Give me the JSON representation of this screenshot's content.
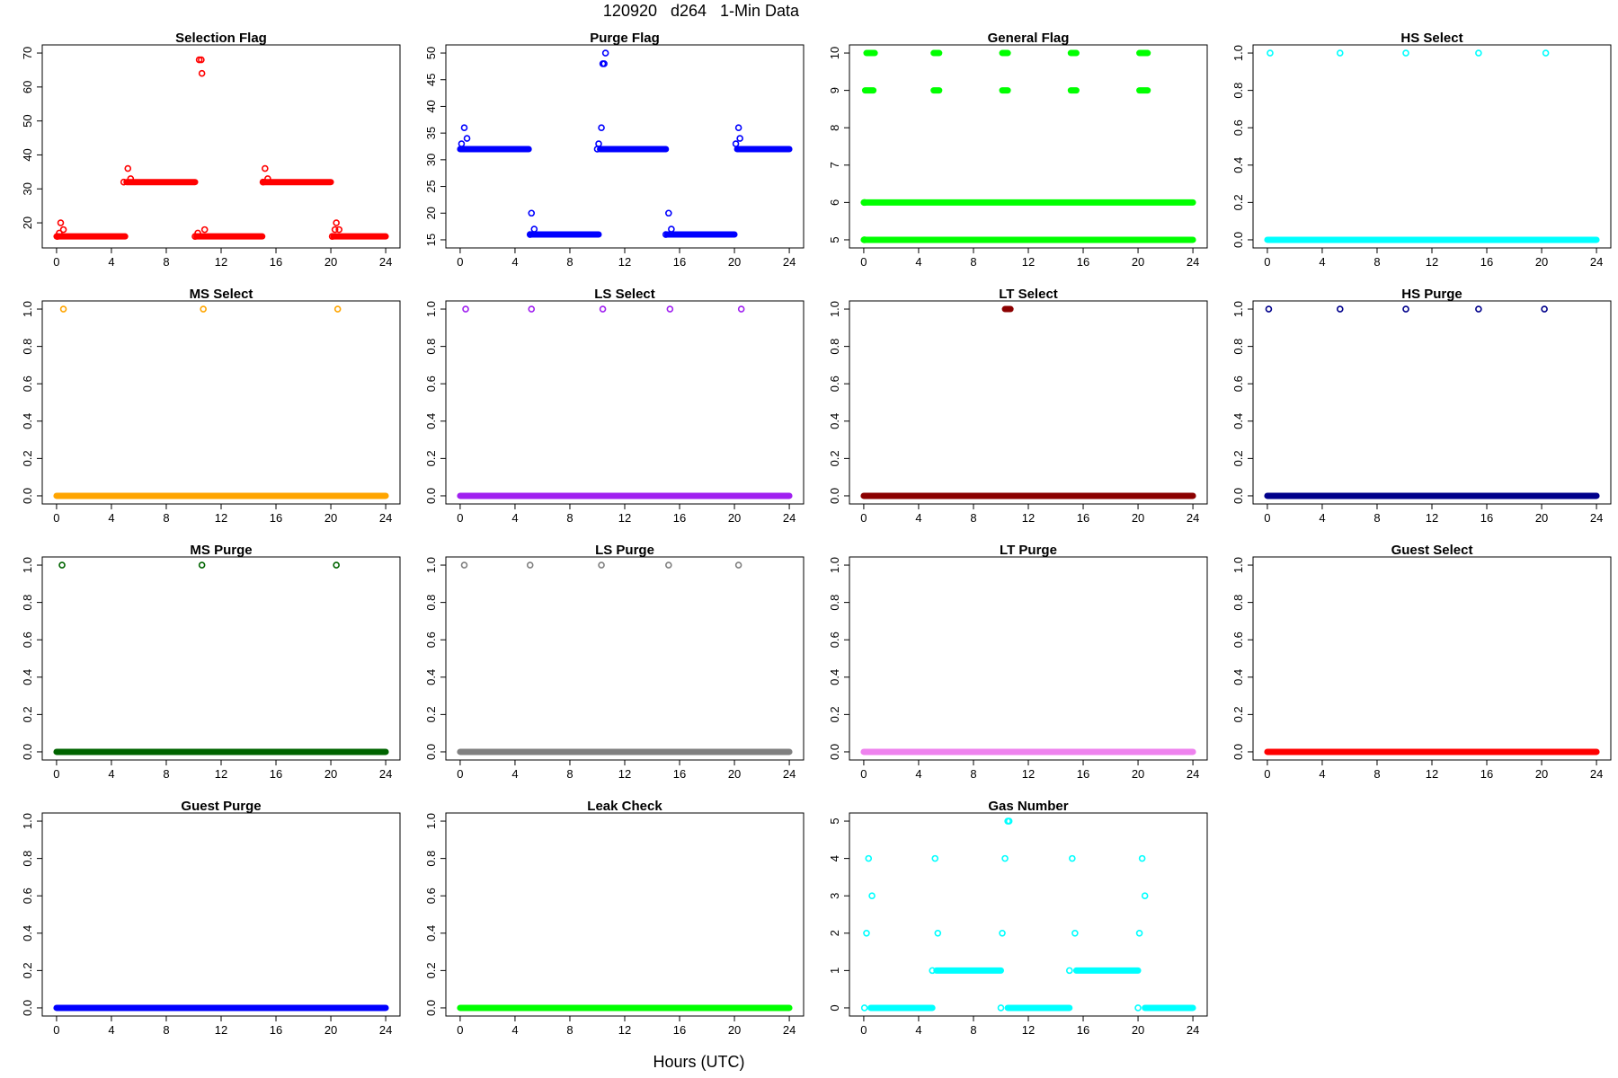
{
  "title": "120920   d264   1-Min Data",
  "xlabel": "Hours (UTC)",
  "chart_data": [
    {
      "type": "scatter",
      "title": "Selection Flag",
      "color": "#ff0000",
      "xlim": [
        0,
        24
      ],
      "ylim": [
        15,
        70
      ],
      "yticks": [
        20,
        30,
        40,
        50,
        60,
        70
      ],
      "xticks": [
        0,
        4,
        8,
        12,
        16,
        20,
        24
      ],
      "runs": [
        [
          0,
          5,
          16
        ],
        [
          5.1,
          10.1,
          32
        ],
        [
          10.2,
          15,
          16
        ],
        [
          15.1,
          20,
          32
        ],
        [
          20.2,
          24,
          16
        ]
      ],
      "points": [
        [
          0.05,
          16
        ],
        [
          0.2,
          17
        ],
        [
          0.3,
          20
        ],
        [
          0.5,
          18
        ],
        [
          4.9,
          32
        ],
        [
          5.2,
          36
        ],
        [
          5.4,
          33
        ],
        [
          10.1,
          16
        ],
        [
          10.3,
          17
        ],
        [
          10.4,
          68
        ],
        [
          10.55,
          68
        ],
        [
          10.6,
          64
        ],
        [
          10.8,
          18
        ],
        [
          15.05,
          32
        ],
        [
          15.2,
          36
        ],
        [
          15.4,
          33
        ],
        [
          20.1,
          16
        ],
        [
          20.3,
          18
        ],
        [
          20.4,
          20
        ],
        [
          20.6,
          18
        ]
      ]
    },
    {
      "type": "scatter",
      "title": "Purge Flag",
      "color": "#0000ff",
      "xlim": [
        0,
        24
      ],
      "ylim": [
        15,
        50
      ],
      "yticks": [
        15,
        20,
        25,
        30,
        35,
        40,
        45,
        50
      ],
      "xticks": [
        0,
        4,
        8,
        12,
        16,
        20,
        24
      ],
      "runs": [
        [
          0,
          5,
          32
        ],
        [
          5.1,
          10.1,
          16
        ],
        [
          10.2,
          15,
          32
        ],
        [
          15.1,
          20,
          16
        ],
        [
          20.2,
          24,
          32
        ]
      ],
      "points": [
        [
          0.1,
          33
        ],
        [
          0.3,
          36
        ],
        [
          0.5,
          34
        ],
        [
          5.1,
          16
        ],
        [
          5.2,
          20
        ],
        [
          5.4,
          17
        ],
        [
          10.0,
          32
        ],
        [
          10.1,
          33
        ],
        [
          10.3,
          36
        ],
        [
          10.4,
          48
        ],
        [
          10.5,
          48
        ],
        [
          10.6,
          50
        ],
        [
          15.0,
          16
        ],
        [
          15.2,
          20
        ],
        [
          15.4,
          17
        ],
        [
          20.1,
          33
        ],
        [
          20.3,
          36
        ],
        [
          20.4,
          34
        ]
      ]
    },
    {
      "type": "scatter",
      "title": "General Flag",
      "color": "#00ff00",
      "xlim": [
        0,
        24
      ],
      "ylim": [
        5,
        10
      ],
      "yticks": [
        5,
        6,
        7,
        8,
        9,
        10
      ],
      "xticks": [
        0,
        4,
        8,
        12,
        16,
        20,
        24
      ],
      "runs": [
        [
          0,
          24,
          5
        ],
        [
          0,
          24,
          6
        ],
        [
          0.1,
          0.7,
          9
        ],
        [
          0.2,
          0.8,
          10
        ],
        [
          5.1,
          5.5,
          9
        ],
        [
          5.1,
          5.5,
          10
        ],
        [
          10.1,
          10.5,
          9
        ],
        [
          10.1,
          10.5,
          10
        ],
        [
          15.1,
          15.5,
          9
        ],
        [
          15.1,
          15.5,
          10
        ],
        [
          20.1,
          20.7,
          9
        ],
        [
          20.1,
          20.7,
          10
        ]
      ],
      "points": [
        [
          0.05,
          5
        ],
        [
          0.05,
          6
        ]
      ]
    },
    {
      "type": "scatter",
      "title": "HS Select",
      "color": "#00ffff",
      "xlim": [
        0,
        24
      ],
      "ylim": [
        0,
        1
      ],
      "yticks": [
        0,
        0.2,
        0.4,
        0.6,
        0.8,
        1
      ],
      "xticks": [
        0,
        4,
        8,
        12,
        16,
        20,
        24
      ],
      "runs": [
        [
          0,
          24,
          0
        ]
      ],
      "points": [
        [
          0.2,
          1
        ],
        [
          5.3,
          1
        ],
        [
          10.1,
          1
        ],
        [
          15.4,
          1
        ],
        [
          20.3,
          1
        ]
      ]
    },
    {
      "type": "scatter",
      "title": "MS Select",
      "color": "#ffa500",
      "xlim": [
        0,
        24
      ],
      "ylim": [
        0,
        1
      ],
      "yticks": [
        0,
        0.2,
        0.4,
        0.6,
        0.8,
        1
      ],
      "xticks": [
        0,
        4,
        8,
        12,
        16,
        20,
        24
      ],
      "runs": [
        [
          0,
          24,
          0
        ]
      ],
      "points": [
        [
          0.5,
          1
        ],
        [
          10.7,
          1
        ],
        [
          20.5,
          1
        ]
      ]
    },
    {
      "type": "scatter",
      "title": "LS Select",
      "color": "#a020f0",
      "xlim": [
        0,
        24
      ],
      "ylim": [
        0,
        1
      ],
      "yticks": [
        0,
        0.2,
        0.4,
        0.6,
        0.8,
        1
      ],
      "xticks": [
        0,
        4,
        8,
        12,
        16,
        20,
        24
      ],
      "runs": [
        [
          0,
          24,
          0
        ]
      ],
      "points": [
        [
          0.4,
          1
        ],
        [
          5.2,
          1
        ],
        [
          10.4,
          1
        ],
        [
          15.3,
          1
        ],
        [
          20.5,
          1
        ]
      ]
    },
    {
      "type": "scatter",
      "title": "LT Select",
      "color": "#8b0000",
      "xlim": [
        0,
        24
      ],
      "ylim": [
        0,
        1
      ],
      "yticks": [
        0,
        0.2,
        0.4,
        0.6,
        0.8,
        1
      ],
      "xticks": [
        0,
        4,
        8,
        12,
        16,
        20,
        24
      ],
      "runs": [
        [
          0,
          24,
          0
        ],
        [
          10.3,
          10.7,
          1
        ]
      ],
      "points": []
    },
    {
      "type": "scatter",
      "title": "HS Purge",
      "color": "#00008b",
      "xlim": [
        0,
        24
      ],
      "ylim": [
        0,
        1
      ],
      "yticks": [
        0,
        0.2,
        0.4,
        0.6,
        0.8,
        1
      ],
      "xticks": [
        0,
        4,
        8,
        12,
        16,
        20,
        24
      ],
      "runs": [
        [
          0,
          24,
          0
        ]
      ],
      "points": [
        [
          0.1,
          1
        ],
        [
          5.3,
          1
        ],
        [
          10.1,
          1
        ],
        [
          15.4,
          1
        ],
        [
          20.2,
          1
        ]
      ]
    },
    {
      "type": "scatter",
      "title": "MS Purge",
      "color": "#006400",
      "xlim": [
        0,
        24
      ],
      "ylim": [
        0,
        1
      ],
      "yticks": [
        0,
        0.2,
        0.4,
        0.6,
        0.8,
        1
      ],
      "xticks": [
        0,
        4,
        8,
        12,
        16,
        20,
        24
      ],
      "runs": [
        [
          0,
          24,
          0
        ]
      ],
      "points": [
        [
          0.4,
          1
        ],
        [
          10.6,
          1
        ],
        [
          20.4,
          1
        ]
      ]
    },
    {
      "type": "scatter",
      "title": "LS Purge",
      "color": "#808080",
      "xlim": [
        0,
        24
      ],
      "ylim": [
        0,
        1
      ],
      "yticks": [
        0,
        0.2,
        0.4,
        0.6,
        0.8,
        1
      ],
      "xticks": [
        0,
        4,
        8,
        12,
        16,
        20,
        24
      ],
      "runs": [
        [
          0,
          24,
          0
        ]
      ],
      "points": [
        [
          0.3,
          1
        ],
        [
          5.1,
          1
        ],
        [
          10.3,
          1
        ],
        [
          15.2,
          1
        ],
        [
          20.3,
          1
        ]
      ]
    },
    {
      "type": "scatter",
      "title": "LT Purge",
      "color": "#ee82ee",
      "xlim": [
        0,
        24
      ],
      "ylim": [
        0,
        1
      ],
      "yticks": [
        0,
        0.2,
        0.4,
        0.6,
        0.8,
        1
      ],
      "xticks": [
        0,
        4,
        8,
        12,
        16,
        20,
        24
      ],
      "runs": [
        [
          0,
          24,
          0
        ]
      ],
      "points": []
    },
    {
      "type": "scatter",
      "title": "Guest Select",
      "color": "#ff0000",
      "xlim": [
        0,
        24
      ],
      "ylim": [
        0,
        1
      ],
      "yticks": [
        0,
        0.2,
        0.4,
        0.6,
        0.8,
        1
      ],
      "xticks": [
        0,
        4,
        8,
        12,
        16,
        20,
        24
      ],
      "runs": [
        [
          0,
          24,
          0
        ]
      ],
      "points": []
    },
    {
      "type": "scatter",
      "title": "Guest Purge",
      "color": "#0000ff",
      "xlim": [
        0,
        24
      ],
      "ylim": [
        0,
        1
      ],
      "yticks": [
        0,
        0.2,
        0.4,
        0.6,
        0.8,
        1
      ],
      "xticks": [
        0,
        4,
        8,
        12,
        16,
        20,
        24
      ],
      "runs": [
        [
          0,
          24,
          0
        ]
      ],
      "points": []
    },
    {
      "type": "scatter",
      "title": "Leak Check",
      "color": "#00ff00",
      "xlim": [
        0,
        24
      ],
      "ylim": [
        0,
        1
      ],
      "yticks": [
        0,
        0.2,
        0.4,
        0.6,
        0.8,
        1
      ],
      "xticks": [
        0,
        4,
        8,
        12,
        16,
        20,
        24
      ],
      "runs": [
        [
          0,
          24,
          0
        ]
      ],
      "points": []
    },
    {
      "type": "scatter",
      "title": "Gas Number",
      "color": "#00ffff",
      "xlim": [
        0,
        24
      ],
      "ylim": [
        0,
        5
      ],
      "yticks": [
        0,
        1,
        2,
        3,
        4,
        5
      ],
      "xticks": [
        0,
        4,
        8,
        12,
        16,
        20,
        24
      ],
      "runs": [
        [
          0.5,
          5,
          0
        ],
        [
          5.3,
          10,
          1
        ],
        [
          10.5,
          15,
          0
        ],
        [
          15.5,
          20,
          1
        ],
        [
          20.5,
          24,
          0
        ]
      ],
      "points": [
        [
          0.05,
          0
        ],
        [
          0.2,
          2
        ],
        [
          0.35,
          4
        ],
        [
          0.6,
          3
        ],
        [
          5.0,
          1
        ],
        [
          5.2,
          4
        ],
        [
          5.4,
          2
        ],
        [
          10.0,
          0
        ],
        [
          10.1,
          2
        ],
        [
          10.3,
          4
        ],
        [
          10.5,
          5
        ],
        [
          10.6,
          5
        ],
        [
          15.0,
          1
        ],
        [
          15.2,
          4
        ],
        [
          15.4,
          2
        ],
        [
          20.0,
          0
        ],
        [
          20.1,
          2
        ],
        [
          20.3,
          4
        ],
        [
          20.5,
          3
        ]
      ]
    }
  ]
}
